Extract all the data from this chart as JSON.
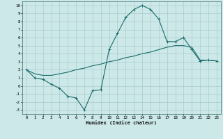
{
  "xlabel": "Humidex (Indice chaleur)",
  "bg_color": "#cce8e8",
  "line_color": "#1a6b6b",
  "grid_color": "#aacccc",
  "xlim": [
    -0.5,
    23.5
  ],
  "ylim": [
    -3.5,
    10.5
  ],
  "xticks": [
    0,
    1,
    2,
    3,
    4,
    5,
    6,
    7,
    8,
    9,
    10,
    11,
    12,
    13,
    14,
    15,
    16,
    17,
    18,
    19,
    20,
    21,
    22,
    23
  ],
  "yticks": [
    -3,
    -2,
    -1,
    0,
    1,
    2,
    3,
    4,
    5,
    6,
    7,
    8,
    9,
    10
  ],
  "line1_x": [
    0,
    1,
    2,
    3,
    4,
    5,
    6,
    7,
    8,
    9,
    10,
    11,
    12,
    13,
    14,
    15,
    16,
    17,
    18,
    19,
    20,
    21,
    22,
    23
  ],
  "line1_y": [
    2.0,
    1.0,
    0.8,
    0.2,
    -0.3,
    -1.3,
    -1.5,
    -3.0,
    -0.6,
    -0.5,
    4.5,
    6.5,
    8.5,
    9.5,
    10.0,
    9.5,
    8.3,
    5.5,
    5.5,
    6.0,
    4.5,
    3.1,
    3.2,
    3.1
  ],
  "line2_x": [
    0,
    1,
    2,
    3,
    4,
    5,
    6,
    7,
    8,
    9,
    10,
    11,
    12,
    13,
    14,
    15,
    16,
    17,
    18,
    19,
    20,
    21,
    22,
    23
  ],
  "line2_y": [
    2.0,
    1.5,
    1.3,
    1.3,
    1.5,
    1.7,
    2.0,
    2.2,
    2.5,
    2.7,
    3.0,
    3.2,
    3.5,
    3.7,
    4.0,
    4.2,
    4.5,
    4.8,
    5.0,
    5.0,
    4.8,
    3.2,
    3.2,
    3.1
  ]
}
